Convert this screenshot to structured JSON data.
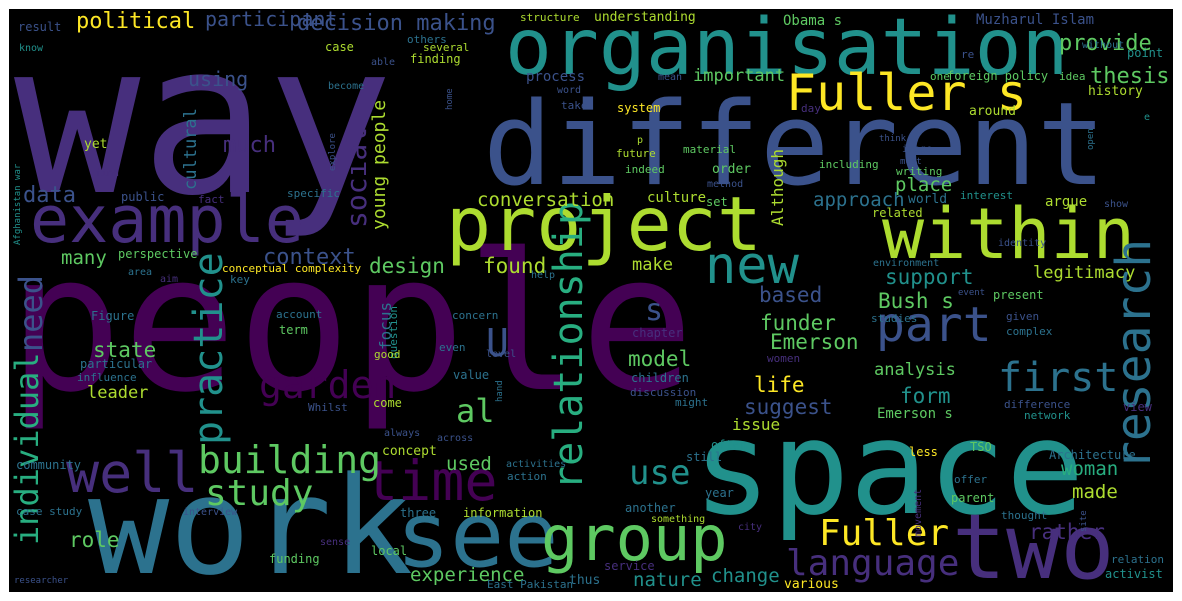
{
  "cloud": {
    "background": "#000000",
    "palette": [
      "#440154",
      "#472f7d",
      "#3b528b",
      "#2c728e",
      "#21918c",
      "#28ae80",
      "#5ec962",
      "#addc30",
      "#fde725"
    ],
    "words": [
      {
        "text": "people",
        "color": "#440154"
      },
      {
        "text": "way",
        "color": "#472f7d"
      },
      {
        "text": "different",
        "color": "#3b528b"
      },
      {
        "text": "organisation",
        "color": "#21918c"
      },
      {
        "text": "work",
        "color": "#2c728e"
      },
      {
        "text": "space",
        "color": "#21918c"
      },
      {
        "text": "project",
        "color": "#addc30"
      },
      {
        "text": "example",
        "color": "#472f7d"
      },
      {
        "text": "within",
        "color": "#addc30"
      },
      {
        "text": "see",
        "color": "#2c728e"
      },
      {
        "text": "two",
        "color": "#472f7d"
      },
      {
        "text": "group",
        "color": "#5ec962"
      },
      {
        "text": "Fuller s",
        "color": "#fde725"
      },
      {
        "text": "new",
        "color": "#21918c"
      },
      {
        "text": "research",
        "color": "#2c728e"
      },
      {
        "text": "time",
        "color": "#440154"
      },
      {
        "text": "well",
        "color": "#472f7d"
      },
      {
        "text": "part",
        "color": "#3b528b"
      },
      {
        "text": "first",
        "color": "#2c728e"
      },
      {
        "text": "building",
        "color": "#5ec962"
      },
      {
        "text": "garden",
        "color": "#440154"
      },
      {
        "text": "study",
        "color": "#5ec962"
      },
      {
        "text": "practice",
        "color": "#21918c"
      },
      {
        "text": "relationship",
        "color": "#28ae80"
      },
      {
        "text": "language",
        "color": "#472f7d"
      },
      {
        "text": "Fuller",
        "color": "#fde725"
      },
      {
        "text": "individual",
        "color": "#28ae80"
      },
      {
        "text": "need",
        "color": "#3b528b"
      },
      {
        "text": "use",
        "color": "#21918c"
      },
      {
        "text": "social",
        "color": "#472f7d"
      },
      {
        "text": "U",
        "color": "#3b528b"
      },
      {
        "text": "s",
        "color": "#3b528b"
      },
      {
        "text": "al",
        "color": "#5ec962"
      },
      {
        "text": "political",
        "color": "#fde725"
      },
      {
        "text": "decision making",
        "color": "#3b528b"
      },
      {
        "text": "participant",
        "color": "#3b528b"
      },
      {
        "text": "provide",
        "color": "#5ec962"
      },
      {
        "text": "thesis",
        "color": "#5ec962"
      },
      {
        "text": "important",
        "color": "#5ec962"
      },
      {
        "text": "using",
        "color": "#3b528b"
      },
      {
        "text": "much",
        "color": "#472f7d"
      },
      {
        "text": "data",
        "color": "#3b528b"
      },
      {
        "text": "conversation",
        "color": "#addc30"
      },
      {
        "text": "context",
        "color": "#3b528b"
      },
      {
        "text": "many",
        "color": "#5ec962"
      },
      {
        "text": "design",
        "color": "#5ec962"
      },
      {
        "text": "found",
        "color": "#addc30"
      },
      {
        "text": "make",
        "color": "#addc30"
      },
      {
        "text": "support",
        "color": "#21918c"
      },
      {
        "text": "legitimacy",
        "color": "#addc30"
      },
      {
        "text": "approach",
        "color": "#2c728e"
      },
      {
        "text": "place",
        "color": "#5ec962"
      },
      {
        "text": "based",
        "color": "#3b528b"
      },
      {
        "text": "Bush s",
        "color": "#5ec962"
      },
      {
        "text": "funder",
        "color": "#5ec962"
      },
      {
        "text": "Emerson",
        "color": "#5ec962"
      },
      {
        "text": "state",
        "color": "#5ec962"
      },
      {
        "text": "model",
        "color": "#5ec962"
      },
      {
        "text": "analysis",
        "color": "#5ec962"
      },
      {
        "text": "life",
        "color": "#fde725"
      },
      {
        "text": "form",
        "color": "#21918c"
      },
      {
        "text": "suggest",
        "color": "#3b528b"
      },
      {
        "text": "leader",
        "color": "#addc30"
      },
      {
        "text": "role",
        "color": "#5ec962"
      },
      {
        "text": "experience",
        "color": "#5ec962"
      },
      {
        "text": "nature",
        "color": "#21918c"
      },
      {
        "text": "change",
        "color": "#21918c"
      },
      {
        "text": "woman",
        "color": "#28ae80"
      },
      {
        "text": "made",
        "color": "#addc30"
      },
      {
        "text": "rather",
        "color": "#472f7d"
      },
      {
        "text": "used",
        "color": "#5ec962"
      },
      {
        "text": "issue",
        "color": "#addc30"
      },
      {
        "text": "Emerson s",
        "color": "#5ec962"
      },
      {
        "text": "focus",
        "color": "#2c728e"
      },
      {
        "text": "cultural",
        "color": "#2c728e"
      },
      {
        "text": "young people",
        "color": "#addc30"
      },
      {
        "text": "Although",
        "color": "#addc30"
      },
      {
        "text": "history",
        "color": "#addc30"
      },
      {
        "text": "process",
        "color": "#3b528b"
      },
      {
        "text": "understanding",
        "color": "#addc30"
      },
      {
        "text": "structure",
        "color": "#addc30"
      },
      {
        "text": "Obama s",
        "color": "#5ec962"
      },
      {
        "text": "Muzharul Islam",
        "color": "#3b528b"
      },
      {
        "text": "result",
        "color": "#3b528b"
      },
      {
        "text": "know",
        "color": "#21918c"
      },
      {
        "text": "case",
        "color": "#addc30"
      },
      {
        "text": "others",
        "color": "#2c728e"
      },
      {
        "text": "able",
        "color": "#3b528b"
      },
      {
        "text": "several",
        "color": "#addc30"
      },
      {
        "text": "finding",
        "color": "#addc30"
      },
      {
        "text": "become",
        "color": "#2c728e"
      },
      {
        "text": "word",
        "color": "#3b528b"
      },
      {
        "text": "mean",
        "color": "#3b528b"
      },
      {
        "text": "home",
        "color": "#3b528b"
      },
      {
        "text": "take",
        "color": "#3b528b"
      },
      {
        "text": "system",
        "color": "#fde725"
      },
      {
        "text": "one",
        "color": "#5ec962"
      },
      {
        "text": "foreign policy",
        "color": "#5ec962"
      },
      {
        "text": "idea",
        "color": "#5ec962"
      },
      {
        "text": "point",
        "color": "#21918c"
      },
      {
        "text": "without",
        "color": "#2c728e"
      },
      {
        "text": "re",
        "color": "#3b528b"
      },
      {
        "text": "around",
        "color": "#addc30"
      },
      {
        "text": "day",
        "color": "#472f7d"
      },
      {
        "text": "e",
        "color": "#21918c"
      },
      {
        "text": "open",
        "color": "#2c728e"
      },
      {
        "text": "yet",
        "color": "#addc30"
      },
      {
        "text": "find",
        "color": "#472f7d"
      },
      {
        "text": "explore",
        "color": "#3b528b"
      },
      {
        "text": "material",
        "color": "#5ec962"
      },
      {
        "text": "p",
        "color": "#addc30"
      },
      {
        "text": "future",
        "color": "#addc30"
      },
      {
        "text": "indeed",
        "color": "#5ec962"
      },
      {
        "text": "order",
        "color": "#5ec962"
      },
      {
        "text": "method",
        "color": "#3b528b"
      },
      {
        "text": "think",
        "color": "#3b528b"
      },
      {
        "text": "image",
        "color": "#3b528b"
      },
      {
        "text": "must",
        "color": "#3b528b"
      },
      {
        "text": "including",
        "color": "#5ec962"
      },
      {
        "text": "writing",
        "color": "#5ec962"
      },
      {
        "text": "public",
        "color": "#3b528b"
      },
      {
        "text": "fact",
        "color": "#472f7d"
      },
      {
        "text": "specific",
        "color": "#2c728e"
      },
      {
        "text": "culture",
        "color": "#addc30"
      },
      {
        "text": "world",
        "color": "#2c728e"
      },
      {
        "text": "interest",
        "color": "#21918c"
      },
      {
        "text": "argue",
        "color": "#addc30"
      },
      {
        "text": "show",
        "color": "#3b528b"
      },
      {
        "text": "set",
        "color": "#5ec962"
      },
      {
        "text": "related",
        "color": "#addc30"
      },
      {
        "text": "identity",
        "color": "#3b528b"
      },
      {
        "text": "Afghanistan war",
        "color": "#21918c"
      },
      {
        "text": "perspective",
        "color": "#5ec962"
      },
      {
        "text": "area",
        "color": "#2c728e"
      },
      {
        "text": "aim",
        "color": "#472f7d"
      },
      {
        "text": "conceptual complexity",
        "color": "#fde725"
      },
      {
        "text": "key",
        "color": "#2c728e"
      },
      {
        "text": "help",
        "color": "#2c728e"
      },
      {
        "text": "environment",
        "color": "#2c728e"
      },
      {
        "text": "event",
        "color": "#3b528b"
      },
      {
        "text": "present",
        "color": "#5ec962"
      },
      {
        "text": "Figure",
        "color": "#2c728e"
      },
      {
        "text": "account",
        "color": "#2c728e"
      },
      {
        "text": "term",
        "color": "#5ec962"
      },
      {
        "text": "question",
        "color": "#21918c"
      },
      {
        "text": "concern",
        "color": "#2c728e"
      },
      {
        "text": "chapter",
        "color": "#472f7d"
      },
      {
        "text": "studies",
        "color": "#2c728e"
      },
      {
        "text": "given",
        "color": "#3b528b"
      },
      {
        "text": "complex",
        "color": "#2c728e"
      },
      {
        "text": "good",
        "color": "#addc30"
      },
      {
        "text": "even",
        "color": "#2c728e"
      },
      {
        "text": "level",
        "color": "#3b528b"
      },
      {
        "text": "women",
        "color": "#472f7d"
      },
      {
        "text": "particular",
        "color": "#2c728e"
      },
      {
        "text": "influence",
        "color": "#2c728e"
      },
      {
        "text": "value",
        "color": "#2c728e"
      },
      {
        "text": "children",
        "color": "#2c728e"
      },
      {
        "text": "discussion",
        "color": "#3b528b"
      },
      {
        "text": "hand",
        "color": "#2c728e"
      },
      {
        "text": "might",
        "color": "#2c728e"
      },
      {
        "text": "Whilst",
        "color": "#3b528b"
      },
      {
        "text": "come",
        "color": "#addc30"
      },
      {
        "text": "difference",
        "color": "#3b528b"
      },
      {
        "text": "network",
        "color": "#21918c"
      },
      {
        "text": "view",
        "color": "#472f7d"
      },
      {
        "text": "always",
        "color": "#3b528b"
      },
      {
        "text": "concept",
        "color": "#addc30"
      },
      {
        "text": "across",
        "color": "#3b528b"
      },
      {
        "text": "often",
        "color": "#21918c"
      },
      {
        "text": "TSO",
        "color": "#5ec962"
      },
      {
        "text": "community",
        "color": "#2c728e"
      },
      {
        "text": "still",
        "color": "#2c728e"
      },
      {
        "text": "less",
        "color": "#fde725"
      },
      {
        "text": "Architecture",
        "color": "#2c728e"
      },
      {
        "text": "activities",
        "color": "#2c728e"
      },
      {
        "text": "action",
        "color": "#2c728e"
      },
      {
        "text": "offer",
        "color": "#2c728e"
      },
      {
        "text": "year",
        "color": "#2c728e"
      },
      {
        "text": "parent",
        "color": "#5ec962"
      },
      {
        "text": "movement",
        "color": "#472f7d"
      },
      {
        "text": "site",
        "color": "#3b528b"
      },
      {
        "text": "case study",
        "color": "#2c728e"
      },
      {
        "text": "interview",
        "color": "#3b528b"
      },
      {
        "text": "three",
        "color": "#2c728e"
      },
      {
        "text": "information",
        "color": "#addc30"
      },
      {
        "text": "another",
        "color": "#2c728e"
      },
      {
        "text": "something",
        "color": "#addc30"
      },
      {
        "text": "thought",
        "color": "#2c728e"
      },
      {
        "text": "sense",
        "color": "#472f7d"
      },
      {
        "text": "city",
        "color": "#472f7d"
      },
      {
        "text": "funding",
        "color": "#5ec962"
      },
      {
        "text": "local",
        "color": "#5ec962"
      },
      {
        "text": "service",
        "color": "#472f7d"
      },
      {
        "text": "relation",
        "color": "#2c728e"
      },
      {
        "text": "activist",
        "color": "#21918c"
      },
      {
        "text": "researcher",
        "color": "#3b528b"
      },
      {
        "text": "East Pakistan",
        "color": "#2c728e"
      },
      {
        "text": "thus",
        "color": "#2c728e"
      },
      {
        "text": "various",
        "color": "#fde725"
      }
    ]
  }
}
